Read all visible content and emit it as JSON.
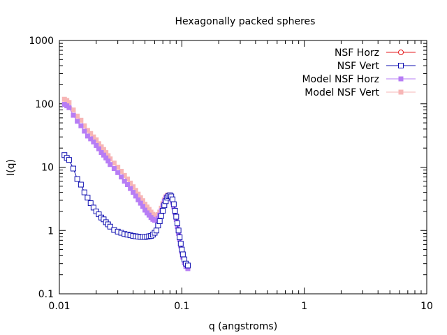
{
  "chart_data": {
    "type": "line",
    "title": "Hexagonally packed spheres",
    "xlabel": "q (angstroms)",
    "ylabel": "I(q)",
    "xscale": "log",
    "yscale": "log",
    "xlim": [
      0.01,
      10
    ],
    "ylim": [
      0.1,
      1000
    ],
    "xticks": [
      {
        "value": 0.01,
        "label": "0.01"
      },
      {
        "value": 0.1,
        "label": "0.1"
      },
      {
        "value": 1,
        "label": "1"
      },
      {
        "value": 10,
        "label": "10"
      }
    ],
    "yticks": [
      {
        "value": 0.1,
        "label": "0.1"
      },
      {
        "value": 1,
        "label": "1"
      },
      {
        "value": 10,
        "label": "10"
      },
      {
        "value": 100,
        "label": "100"
      },
      {
        "value": 1000,
        "label": "1000"
      }
    ],
    "grid": false,
    "legend_position": "top-right",
    "series": [
      {
        "name": "NSF Horz",
        "color": "#e41a1c",
        "marker": "open-circle",
        "line": true,
        "points": []
      },
      {
        "name": "NSF Vert",
        "color": "#1010b0",
        "marker": "open-square",
        "line": true,
        "points": [
          [
            0.011,
            15.5
          ],
          [
            0.0115,
            14.0
          ],
          [
            0.012,
            13.0
          ],
          [
            0.013,
            9.5
          ],
          [
            0.014,
            6.5
          ],
          [
            0.015,
            5.3
          ],
          [
            0.016,
            4.0
          ],
          [
            0.017,
            3.3
          ],
          [
            0.018,
            2.7
          ],
          [
            0.019,
            2.3
          ],
          [
            0.02,
            2.0
          ],
          [
            0.021,
            1.8
          ],
          [
            0.022,
            1.6
          ],
          [
            0.023,
            1.5
          ],
          [
            0.024,
            1.35
          ],
          [
            0.025,
            1.25
          ],
          [
            0.026,
            1.15
          ],
          [
            0.028,
            1.02
          ],
          [
            0.03,
            0.96
          ],
          [
            0.032,
            0.92
          ],
          [
            0.034,
            0.88
          ],
          [
            0.036,
            0.86
          ],
          [
            0.038,
            0.84
          ],
          [
            0.04,
            0.82
          ],
          [
            0.042,
            0.81
          ],
          [
            0.044,
            0.8
          ],
          [
            0.046,
            0.79
          ],
          [
            0.048,
            0.79
          ],
          [
            0.05,
            0.79
          ],
          [
            0.052,
            0.8
          ],
          [
            0.054,
            0.81
          ],
          [
            0.056,
            0.82
          ],
          [
            0.058,
            0.86
          ],
          [
            0.06,
            0.92
          ],
          [
            0.062,
            1.0
          ],
          [
            0.064,
            1.2
          ],
          [
            0.066,
            1.4
          ],
          [
            0.068,
            1.7
          ],
          [
            0.07,
            2.05
          ],
          [
            0.072,
            2.5
          ],
          [
            0.074,
            2.9
          ],
          [
            0.076,
            3.3
          ],
          [
            0.078,
            3.5
          ],
          [
            0.08,
            3.6
          ],
          [
            0.082,
            3.45
          ],
          [
            0.084,
            3.1
          ],
          [
            0.086,
            2.6
          ],
          [
            0.088,
            2.05
          ],
          [
            0.09,
            1.65
          ],
          [
            0.092,
            1.3
          ],
          [
            0.094,
            1.0
          ],
          [
            0.096,
            0.78
          ],
          [
            0.098,
            0.62
          ],
          [
            0.1,
            0.5
          ],
          [
            0.102,
            0.42
          ],
          [
            0.105,
            0.35
          ],
          [
            0.108,
            0.3
          ],
          [
            0.112,
            0.28
          ]
        ]
      },
      {
        "name": "Model NSF Horz",
        "color": "#b77df5",
        "marker": "filled-square",
        "line": true,
        "points": [
          [
            0.011,
            98
          ],
          [
            0.0115,
            93
          ],
          [
            0.012,
            87
          ],
          [
            0.013,
            66
          ],
          [
            0.014,
            53
          ],
          [
            0.015,
            45
          ],
          [
            0.016,
            37
          ],
          [
            0.017,
            31
          ],
          [
            0.018,
            28
          ],
          [
            0.019,
            25
          ],
          [
            0.02,
            22
          ],
          [
            0.021,
            19.5
          ],
          [
            0.022,
            17
          ],
          [
            0.023,
            15.5
          ],
          [
            0.024,
            14
          ],
          [
            0.025,
            12.5
          ],
          [
            0.026,
            11
          ],
          [
            0.028,
            9.5
          ],
          [
            0.03,
            8.2
          ],
          [
            0.032,
            7.0
          ],
          [
            0.034,
            6.0
          ],
          [
            0.036,
            5.3
          ],
          [
            0.038,
            4.6
          ],
          [
            0.04,
            4.0
          ],
          [
            0.042,
            3.5
          ],
          [
            0.044,
            3.05
          ],
          [
            0.046,
            2.7
          ],
          [
            0.048,
            2.4
          ],
          [
            0.05,
            2.1
          ],
          [
            0.052,
            1.9
          ],
          [
            0.054,
            1.75
          ],
          [
            0.056,
            1.6
          ],
          [
            0.058,
            1.5
          ],
          [
            0.06,
            1.45
          ],
          [
            0.062,
            1.45
          ],
          [
            0.064,
            1.55
          ],
          [
            0.066,
            1.75
          ],
          [
            0.068,
            2.05
          ],
          [
            0.07,
            2.45
          ],
          [
            0.072,
            2.9
          ],
          [
            0.074,
            3.25
          ],
          [
            0.076,
            3.45
          ],
          [
            0.078,
            3.5
          ],
          [
            0.08,
            3.4
          ],
          [
            0.082,
            3.15
          ],
          [
            0.084,
            2.8
          ],
          [
            0.086,
            2.35
          ],
          [
            0.088,
            1.9
          ],
          [
            0.09,
            1.5
          ],
          [
            0.092,
            1.15
          ],
          [
            0.094,
            0.9
          ],
          [
            0.096,
            0.72
          ],
          [
            0.098,
            0.57
          ],
          [
            0.1,
            0.46
          ],
          [
            0.102,
            0.38
          ],
          [
            0.105,
            0.31
          ],
          [
            0.108,
            0.27
          ],
          [
            0.112,
            0.25
          ]
        ]
      },
      {
        "name": "Model NSF Vert",
        "color": "#f7b6b6",
        "marker": "filled-square",
        "line": true,
        "points": [
          [
            0.011,
            118
          ],
          [
            0.0115,
            113
          ],
          [
            0.012,
            105
          ],
          [
            0.013,
            80
          ],
          [
            0.014,
            64
          ],
          [
            0.015,
            55
          ],
          [
            0.016,
            45
          ],
          [
            0.017,
            38
          ],
          [
            0.018,
            34
          ],
          [
            0.019,
            30
          ],
          [
            0.02,
            27
          ],
          [
            0.021,
            23.5
          ],
          [
            0.022,
            21
          ],
          [
            0.023,
            19
          ],
          [
            0.024,
            17
          ],
          [
            0.025,
            15.2
          ],
          [
            0.026,
            13.5
          ],
          [
            0.028,
            11.6
          ],
          [
            0.03,
            10.0
          ],
          [
            0.032,
            8.6
          ],
          [
            0.034,
            7.4
          ],
          [
            0.036,
            6.5
          ],
          [
            0.038,
            5.6
          ],
          [
            0.04,
            4.9
          ],
          [
            0.042,
            4.3
          ],
          [
            0.044,
            3.75
          ],
          [
            0.046,
            3.3
          ],
          [
            0.048,
            2.95
          ],
          [
            0.05,
            2.6
          ],
          [
            0.052,
            2.35
          ],
          [
            0.054,
            2.15
          ],
          [
            0.056,
            1.95
          ],
          [
            0.058,
            1.8
          ],
          [
            0.06,
            1.72
          ],
          [
            0.062,
            1.7
          ],
          [
            0.064,
            1.78
          ],
          [
            0.066,
            1.95
          ],
          [
            0.068,
            2.25
          ],
          [
            0.07,
            2.65
          ],
          [
            0.072,
            3.05
          ],
          [
            0.074,
            3.4
          ],
          [
            0.076,
            3.6
          ],
          [
            0.078,
            3.65
          ],
          [
            0.08,
            3.55
          ],
          [
            0.082,
            3.3
          ],
          [
            0.084,
            2.9
          ],
          [
            0.086,
            2.45
          ],
          [
            0.088,
            1.95
          ],
          [
            0.09,
            1.55
          ],
          [
            0.092,
            1.2
          ],
          [
            0.094,
            0.93
          ],
          [
            0.096,
            0.74
          ],
          [
            0.098,
            0.58
          ],
          [
            0.1,
            0.47
          ],
          [
            0.102,
            0.39
          ],
          [
            0.105,
            0.32
          ],
          [
            0.108,
            0.28
          ],
          [
            0.112,
            0.26
          ]
        ]
      }
    ]
  }
}
